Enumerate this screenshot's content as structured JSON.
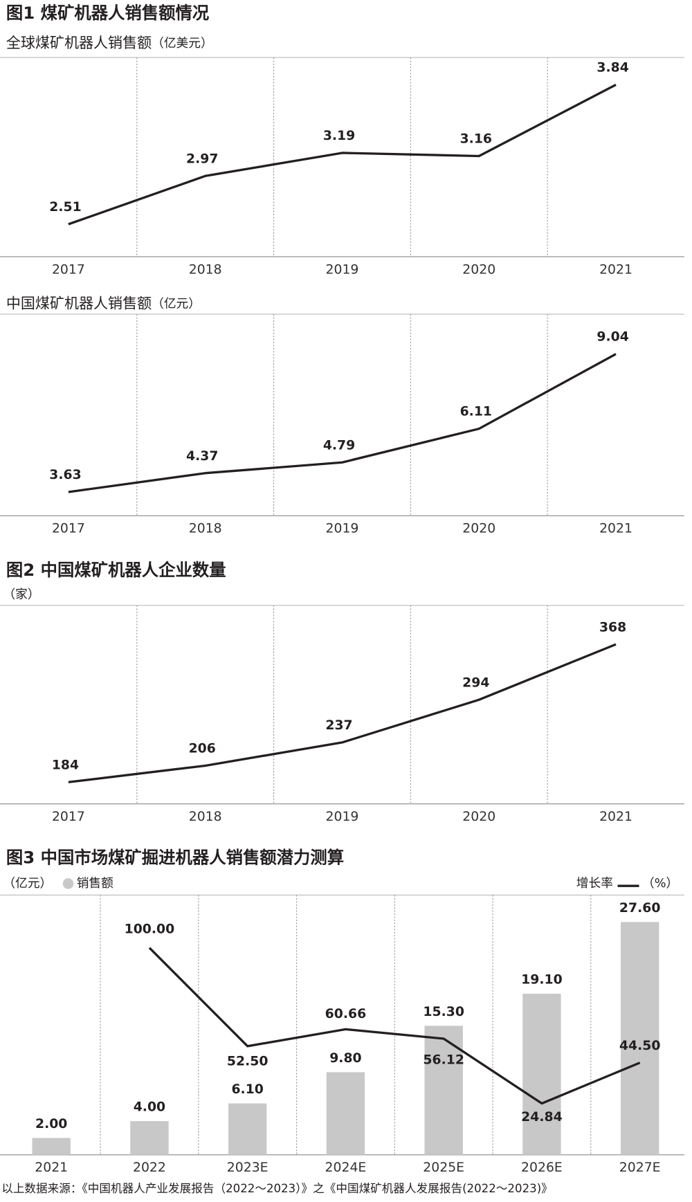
{
  "chart_data": [
    {
      "type": "line",
      "heading": "图1 煤矿机器人销售额情况",
      "title": "全球煤矿机器人销售额",
      "unit": "（亿美元）",
      "categories": [
        "2017",
        "2018",
        "2019",
        "2020",
        "2021"
      ],
      "values": [
        2.51,
        2.97,
        3.19,
        3.16,
        3.84
      ],
      "color": "#231f20",
      "ylim": [
        2.2,
        4.1
      ]
    },
    {
      "type": "line",
      "title": "中国煤矿机器人销售额",
      "unit": "（亿元）",
      "categories": [
        "2017",
        "2018",
        "2019",
        "2020",
        "2021"
      ],
      "values": [
        3.63,
        4.37,
        4.79,
        6.11,
        9.04
      ],
      "color": "#231f20",
      "ylim": [
        2.7,
        10.6
      ]
    },
    {
      "type": "line",
      "heading": "图2 中国煤矿机器人企业数量",
      "unit": "（家）",
      "categories": [
        "2017",
        "2018",
        "2019",
        "2020",
        "2021"
      ],
      "values": [
        184,
        206,
        237,
        294,
        368
      ],
      "color": "#231f20",
      "ylim": [
        155,
        420
      ]
    },
    {
      "type": "bar_line",
      "heading": "图3 中国市场煤矿掘进机器人销售额潜力测算",
      "unit": "（亿元）",
      "y2unit": "（%）",
      "categories": [
        "2021",
        "2022",
        "2023E",
        "2024E",
        "2025E",
        "2026E",
        "2027E"
      ],
      "series": [
        {
          "name": "销售额",
          "color": "#c8c8c8",
          "values": [
            2,
            4,
            6.1,
            9.8,
            15.3,
            19.1,
            27.6
          ],
          "value_labels": [
            "2.00",
            "4.00",
            "6.10",
            "9.80",
            "15.30",
            "19.10",
            "27.60"
          ]
        },
        {
          "name": "增长率",
          "color": "#231f20",
          "axis": "y2",
          "values": [
            null,
            100,
            52.5,
            60.66,
            56.12,
            24.84,
            44.5
          ],
          "value_labels": [
            null,
            "100.00",
            "52.50",
            "60.66",
            "56.12",
            "24.84",
            "44.50"
          ]
        }
      ],
      "ylim": [
        0,
        30.8
      ],
      "y2lim": [
        0,
        125.5
      ]
    }
  ],
  "source": "以上数据来源：《中国机器人产业发展报告（2022～2023）》之《中国煤矿机器人发展报告(2022～2023)》"
}
